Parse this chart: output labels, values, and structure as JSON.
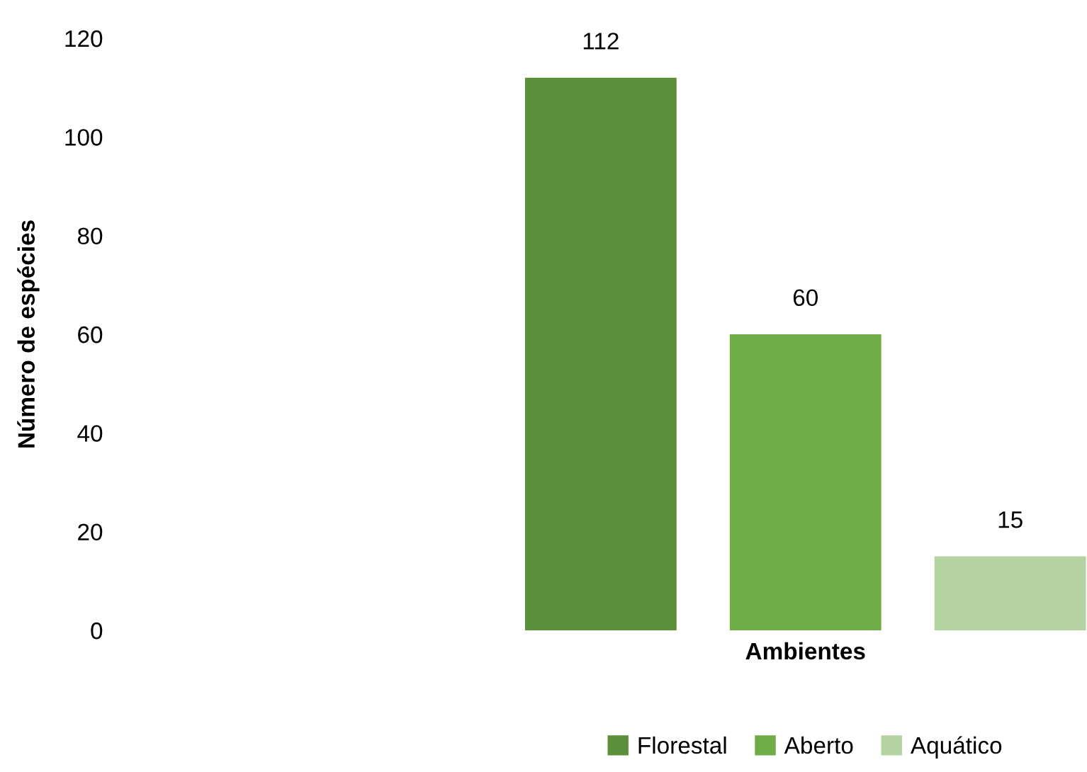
{
  "chart_data": {
    "type": "bar",
    "categories": [
      null
    ],
    "xlabel": "Ambientes",
    "ylabel": "Número de espécies",
    "series": [
      {
        "name": "Florestal",
        "color": "#5b8f3a",
        "values": [
          112
        ]
      },
      {
        "name": "Aberto",
        "color": "#70ad47",
        "values": [
          60
        ]
      },
      {
        "name": "Aquático",
        "color": "#b5d3a0",
        "values": [
          15
        ]
      }
    ],
    "ylim": [
      0,
      120
    ],
    "yticks": [
      0,
      20,
      40,
      60,
      80,
      100,
      120
    ],
    "data_labels": true,
    "legend": "bottom",
    "grid": false
  }
}
